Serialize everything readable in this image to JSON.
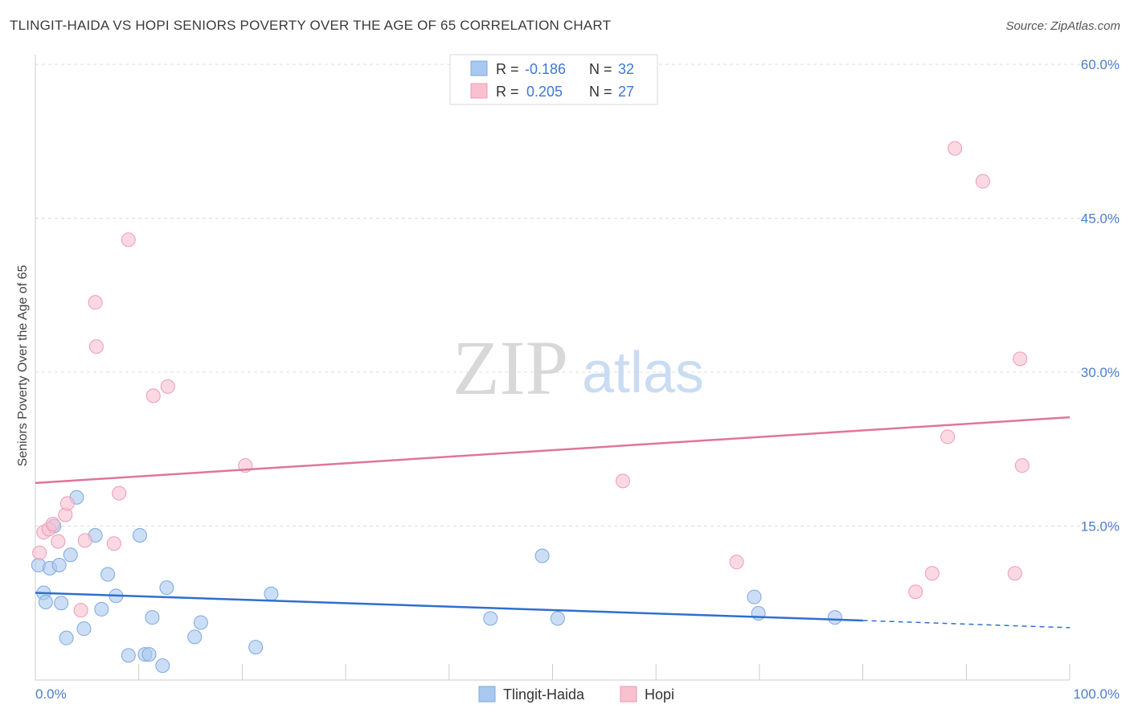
{
  "header": {
    "title": "TLINGIT-HAIDA VS HOPI SENIORS POVERTY OVER THE AGE OF 65 CORRELATION CHART",
    "source": "Source: ZipAtlas.com"
  },
  "watermark": {
    "zip": "ZIP",
    "atlas": "atlas"
  },
  "legend": {
    "rows": [
      {
        "r_label": "R =",
        "r_value": "-0.186",
        "n_label": "N =",
        "n_value": "32"
      },
      {
        "r_label": "R =",
        "r_value": "0.205",
        "n_label": "N =",
        "n_value": "27"
      }
    ]
  },
  "chart_data": {
    "type": "scatter",
    "xlabel": "",
    "ylabel": "Seniors Poverty Over the Age of 65",
    "xlim": [
      0,
      100
    ],
    "ylim": [
      0,
      60
    ],
    "x_tick_labels": [
      "0.0%",
      "100.0%"
    ],
    "y_ticks": [
      15,
      30,
      45,
      60
    ],
    "y_tick_labels": [
      "15.0%",
      "30.0%",
      "45.0%",
      "60.0%"
    ],
    "grid": true,
    "legend_position": "top-center",
    "series": [
      {
        "name": "Tlingit-Haida",
        "color": "#a9c8f0",
        "edge": "#7ea8e0",
        "line_color": "#2f6fcf",
        "trend": {
          "x0": 0,
          "y0": 8.5,
          "x1": 80,
          "y1": 5.8,
          "dashed_to": 100,
          "dashed_y": 5.1
        },
        "points": [
          [
            0.3,
            11.2
          ],
          [
            0.8,
            8.5
          ],
          [
            1.0,
            7.6
          ],
          [
            1.4,
            10.9
          ],
          [
            1.8,
            15.0
          ],
          [
            2.3,
            11.2
          ],
          [
            2.5,
            7.5
          ],
          [
            3.0,
            4.1
          ],
          [
            3.4,
            12.2
          ],
          [
            4.0,
            17.8
          ],
          [
            4.7,
            5.0
          ],
          [
            5.8,
            14.1
          ],
          [
            6.4,
            6.9
          ],
          [
            7.0,
            10.3
          ],
          [
            7.8,
            8.2
          ],
          [
            9.0,
            2.4
          ],
          [
            10.1,
            14.1
          ],
          [
            10.6,
            2.5
          ],
          [
            11.0,
            2.5
          ],
          [
            11.3,
            6.1
          ],
          [
            12.3,
            1.4
          ],
          [
            12.7,
            9.0
          ],
          [
            15.4,
            4.2
          ],
          [
            16.0,
            5.6
          ],
          [
            21.3,
            3.2
          ],
          [
            22.8,
            8.4
          ],
          [
            44.0,
            6.0
          ],
          [
            49.0,
            12.1
          ],
          [
            50.5,
            6.0
          ],
          [
            69.5,
            8.1
          ],
          [
            69.9,
            6.5
          ],
          [
            77.3,
            6.1
          ]
        ]
      },
      {
        "name": "Hopi",
        "color": "#f9c0d0",
        "edge": "#ef9ab5",
        "line_color": "#e0759a",
        "trend": {
          "x0": 0,
          "y0": 19.2,
          "x1": 100,
          "y1": 25.6
        },
        "points": [
          [
            0.4,
            12.4
          ],
          [
            0.8,
            14.4
          ],
          [
            1.3,
            14.7
          ],
          [
            1.7,
            15.2
          ],
          [
            2.2,
            13.5
          ],
          [
            2.9,
            16.1
          ],
          [
            3.1,
            17.2
          ],
          [
            4.4,
            6.8
          ],
          [
            4.8,
            13.6
          ],
          [
            5.8,
            36.8
          ],
          [
            5.9,
            32.5
          ],
          [
            7.6,
            13.3
          ],
          [
            8.1,
            18.2
          ],
          [
            9.0,
            42.9
          ],
          [
            11.4,
            27.7
          ],
          [
            12.8,
            28.6
          ],
          [
            20.3,
            20.9
          ],
          [
            56.8,
            19.4
          ],
          [
            67.8,
            11.5
          ],
          [
            85.1,
            8.6
          ],
          [
            86.7,
            10.4
          ],
          [
            88.2,
            23.7
          ],
          [
            88.9,
            51.8
          ],
          [
            91.6,
            48.6
          ],
          [
            94.7,
            10.4
          ],
          [
            95.2,
            31.3
          ],
          [
            95.4,
            20.9
          ]
        ]
      }
    ]
  }
}
